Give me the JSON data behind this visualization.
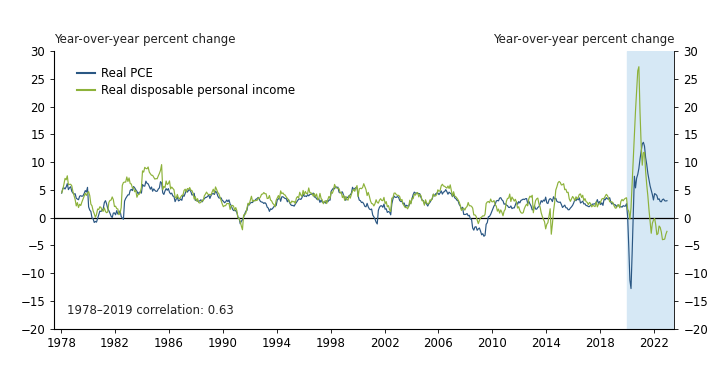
{
  "title_left": "Year-over-year percent change",
  "title_right": "Year-over-year percent change",
  "legend_labels": [
    "Real PCE",
    "Real disposable personal income"
  ],
  "pce_color": "#2a5783",
  "dpi_color": "#8db23a",
  "shading_color": "#d6e8f5",
  "ylim": [
    -20,
    30
  ],
  "yticks": [
    -20,
    -15,
    -10,
    -5,
    0,
    5,
    10,
    15,
    20,
    25,
    30
  ],
  "xticks": [
    1978,
    1982,
    1986,
    1990,
    1994,
    1998,
    2002,
    2006,
    2010,
    2014,
    2018,
    2022
  ],
  "xlim": [
    1977.5,
    2023.5
  ],
  "annotation": "1978–2019 correlation: 0.63",
  "shading_start": 2020.0,
  "shading_end": 2023.5,
  "zero_line_color": "#000000",
  "background_color": "#ffffff",
  "title_fontsize": 8.5,
  "tick_fontsize": 8.5,
  "legend_fontsize": 8.5,
  "annotation_fontsize": 8.5,
  "line_width": 0.85
}
